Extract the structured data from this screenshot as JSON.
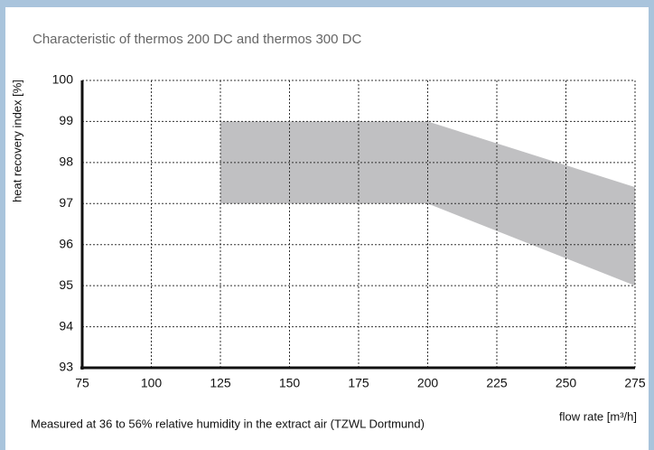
{
  "chart_data": {
    "type": "band",
    "title": "Characteristic of thermos 200 DC and thermos 300 DC",
    "y_label": "heat recovery index [%]",
    "x_label": "flow rate [m³/h]",
    "footnote": "Measured at 36 to 56% relative humidity in the extract air (TZWL Dortmund)",
    "x": [
      125,
      200,
      275
    ],
    "upper": [
      99,
      99,
      97.4
    ],
    "lower": [
      97,
      97,
      95
    ],
    "color": "#c0c0c2",
    "xlim": [
      75,
      275
    ],
    "xticks": [
      75,
      100,
      125,
      150,
      175,
      200,
      225,
      250,
      275
    ],
    "ylim": [
      93,
      100
    ],
    "yticks": [
      93,
      94,
      95,
      96,
      97,
      98,
      99,
      100
    ],
    "grid": true
  }
}
